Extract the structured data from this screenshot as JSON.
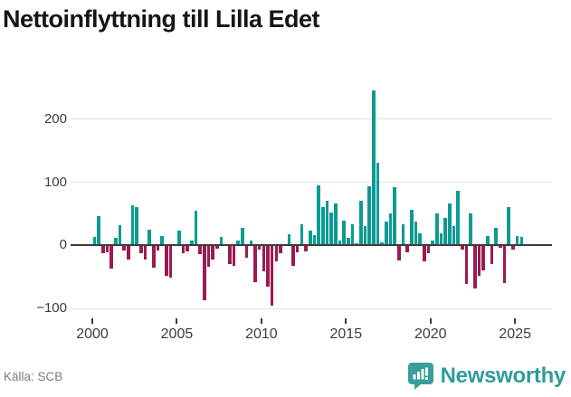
{
  "title": "Nettoinflyttning till Lilla Edet",
  "source": "Källa: SCB",
  "brand": {
    "name": "Newsworthy",
    "icon": "bar-chart-speech-bubble-icon",
    "color": "#3a9e9e"
  },
  "colors": {
    "positive_bar": "#0b9b93",
    "negative_bar": "#9c1a52",
    "grid": "#e1e1e1",
    "zero_line": "#3c3c3c",
    "axis_text": "#3d3d3d",
    "source_text": "#7c7c7c",
    "title_text": "#151515"
  },
  "chart_data": {
    "type": "bar",
    "title": "Nettoinflyttning till Lilla Edet",
    "xlabel": "",
    "ylabel": "",
    "x_unit": "quarter",
    "start_year": 2000,
    "start_quarter": 1,
    "end_year": 2025,
    "end_quarter": 2,
    "x_tick_labels": [
      "2000",
      "2005",
      "2010",
      "2015",
      "2020",
      "2025"
    ],
    "y_ticks": [
      200,
      100,
      0,
      -100
    ],
    "y_tick_labels": [
      "200",
      "100",
      "0",
      "−100"
    ],
    "ylim": [
      -115,
      253
    ],
    "grid": "horizontal",
    "legend": "none",
    "values": [
      14,
      46,
      -13,
      -11,
      -37,
      12,
      32,
      -8,
      -23,
      63,
      60,
      -12,
      -22,
      25,
      -36,
      -8,
      15,
      -49,
      -51,
      0,
      24,
      -13,
      -10,
      7,
      55,
      -14,
      -87,
      -34,
      -22,
      -6,
      13,
      0,
      -29,
      -33,
      7,
      27,
      -20,
      7,
      -58,
      -7,
      -41,
      -66,
      -95,
      -25,
      -12,
      0,
      17,
      -32,
      -11,
      33,
      -9,
      23,
      16,
      95,
      60,
      71,
      52,
      66,
      7,
      39,
      12,
      33,
      3,
      70,
      31,
      93,
      245,
      131,
      5,
      38,
      50,
      92,
      -24,
      33,
      -11,
      57,
      37,
      19,
      -25,
      -13,
      8,
      51,
      19,
      44,
      66,
      31,
      86,
      -7,
      -61,
      51,
      -68,
      -49,
      -40,
      15,
      -29,
      28,
      -4,
      -60,
      61,
      -7,
      15,
      14
    ]
  }
}
